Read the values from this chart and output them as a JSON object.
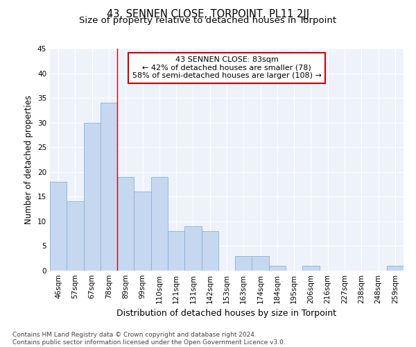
{
  "title": "43, SENNEN CLOSE, TORPOINT, PL11 2JJ",
  "subtitle": "Size of property relative to detached houses in Torpoint",
  "xlabel": "Distribution of detached houses by size in Torpoint",
  "ylabel": "Number of detached properties",
  "footer_line1": "Contains HM Land Registry data © Crown copyright and database right 2024.",
  "footer_line2": "Contains public sector information licensed under the Open Government Licence v3.0.",
  "categories": [
    "46sqm",
    "57sqm",
    "67sqm",
    "78sqm",
    "89sqm",
    "99sqm",
    "110sqm",
    "121sqm",
    "131sqm",
    "142sqm",
    "153sqm",
    "163sqm",
    "174sqm",
    "184sqm",
    "195sqm",
    "206sqm",
    "216sqm",
    "227sqm",
    "238sqm",
    "248sqm",
    "259sqm"
  ],
  "values": [
    18,
    14,
    30,
    34,
    19,
    16,
    19,
    8,
    9,
    8,
    0,
    3,
    3,
    1,
    0,
    1,
    0,
    0,
    0,
    0,
    1
  ],
  "bar_color": "#c5d8f0",
  "bar_edge_color": "#8ab0d8",
  "annotation_line1": "43 SENNEN CLOSE: 83sqm",
  "annotation_line2": "← 42% of detached houses are smaller (78)",
  "annotation_line3": "58% of semi-detached houses are larger (108) →",
  "annotation_box_color": "white",
  "annotation_box_edge_color": "#cc0000",
  "reference_line_x": 3.5,
  "reference_line_color": "#cc0000",
  "ylim": [
    0,
    45
  ],
  "yticks": [
    0,
    5,
    10,
    15,
    20,
    25,
    30,
    35,
    40,
    45
  ],
  "title_fontsize": 10.5,
  "subtitle_fontsize": 9.5,
  "ylabel_fontsize": 8.5,
  "xlabel_fontsize": 9,
  "tick_fontsize": 7.5,
  "annotation_fontsize": 8,
  "footer_fontsize": 6.5,
  "background_color": "#eef2fb",
  "grid_color": "white",
  "figure_bg": "white"
}
